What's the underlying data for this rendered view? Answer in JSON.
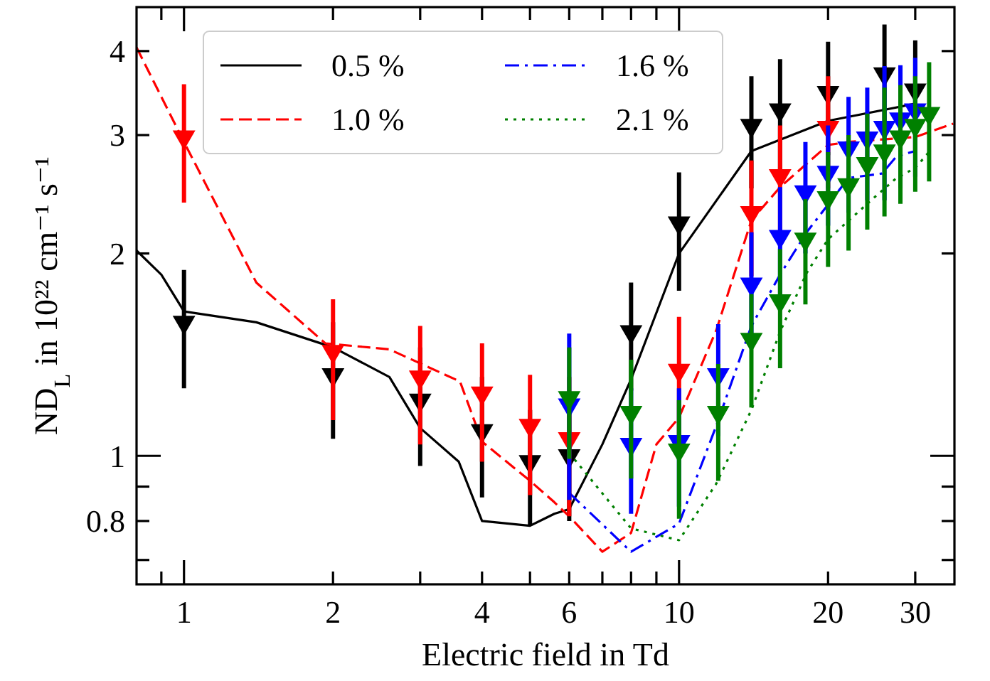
{
  "chart_data": {
    "type": "line",
    "xlabel": "Electric field in Td",
    "ylabel": "ND$_{L}$ in 10²² cm⁻¹ s⁻¹",
    "log": "xy",
    "grid": false,
    "legend": "top",
    "xlim": [
      0.802,
      36
    ],
    "ylim": [
      0.644,
      4.65
    ],
    "xticks": [
      {
        "value": 0.9,
        "label": null
      },
      1,
      2,
      {
        "value": 3,
        "label": null
      },
      4,
      {
        "value": 5,
        "label": null
      },
      6,
      {
        "value": 7,
        "label": null
      },
      {
        "value": 8,
        "label": null
      },
      {
        "value": 9,
        "label": null
      },
      10,
      20,
      30
    ],
    "yticks": [
      {
        "value": 0.7,
        "label": null
      },
      0.8,
      {
        "value": 0.9,
        "label": null
      },
      1,
      2,
      3,
      4
    ],
    "series": [
      {
        "name": "0.5 %",
        "color": "#000000",
        "line_style": "solid",
        "x": [
          0.802,
          0.9,
          1,
          1.4,
          2,
          2.6,
          3,
          3.59,
          4,
          5,
          5.6,
          6,
          7,
          8,
          10,
          14,
          20,
          30
        ],
        "values": [
          2.02,
          1.86,
          1.64,
          1.58,
          1.45,
          1.31,
          1.1,
          0.98,
          0.8,
          0.787,
          0.82,
          0.833,
          1.04,
          1.3,
          2.0,
          2.84,
          3.15,
          3.34
        ]
      },
      {
        "name": "1.0 %",
        "color": "#ff0000",
        "line_style": "dashed",
        "x": [
          0.802,
          1,
          1.4,
          1.93,
          2.6,
          3.61,
          4,
          5,
          5.6,
          6,
          7,
          8,
          9,
          10,
          11.9,
          14,
          16,
          20,
          22,
          30,
          35.8
        ],
        "values": [
          4.05,
          2.93,
          1.81,
          1.47,
          1.44,
          1.29,
          1.05,
          0.918,
          0.853,
          0.813,
          0.72,
          0.768,
          1.04,
          1.14,
          1.54,
          2.24,
          2.51,
          2.9,
          2.93,
          2.98,
          3.12
        ]
      },
      {
        "name": "1.6 %",
        "color": "#0000ff",
        "line_style": "dashdot",
        "x": [
          6,
          8,
          10,
          11.9,
          14,
          16,
          18.1,
          22,
          25.7,
          27.5,
          30
        ],
        "values": [
          0.881,
          0.72,
          0.793,
          1.11,
          1.56,
          1.86,
          2.15,
          2.59,
          2.63,
          2.79,
          2.84
        ]
      },
      {
        "name": "2.1 %",
        "color": "#008000",
        "line_style": "dotted",
        "x": [
          6,
          8,
          10,
          11.9,
          14,
          16,
          18.1,
          20,
          24.6,
          27.5,
          30,
          32.1
        ],
        "values": [
          1.01,
          0.78,
          0.749,
          0.91,
          1.17,
          1.53,
          1.87,
          2.1,
          2.41,
          2.59,
          2.68,
          2.84
        ]
      },
      {
        "type": "scatter",
        "color": "#000000",
        "marker": "triangle",
        "x": [
          1,
          2,
          3,
          4,
          5,
          6,
          8,
          10,
          14,
          16,
          20,
          26,
          30
        ],
        "values": [
          1.58,
          1.32,
          1.21,
          1.09,
          0.98,
          1.0,
          1.53,
          2.22,
          3.1,
          3.27,
          3.47,
          3.7,
          3.5
        ],
        "errors": [
          [
            1.26,
            1.89
          ],
          [
            1.06,
            1.58
          ],
          [
            0.966,
            1.45
          ],
          [
            0.867,
            1.31
          ],
          [
            0.787,
            1.17
          ],
          [
            0.8,
            1.2
          ],
          [
            1.25,
            1.81
          ],
          [
            1.76,
            2.64
          ],
          [
            2.5,
            3.67
          ],
          [
            2.65,
            3.89
          ],
          [
            2.8,
            4.13
          ],
          [
            3.0,
            4.38
          ],
          [
            2.85,
            4.15
          ]
        ]
      },
      {
        "type": "scatter",
        "color": "#ff0000",
        "marker": "triangle",
        "x": [
          1,
          2,
          3,
          4,
          5,
          6,
          10,
          14,
          16,
          20
        ],
        "values": [
          2.98,
          1.43,
          1.31,
          1.24,
          1.11,
          1.06,
          1.34,
          2.3,
          2.61,
          3.08
        ],
        "errors": [
          [
            2.38,
            3.57
          ],
          [
            1.13,
            1.71
          ],
          [
            1.04,
            1.56
          ],
          [
            0.98,
            1.47
          ],
          [
            0.874,
            1.32
          ],
          [
            0.813,
            1.31
          ],
          [
            1.07,
            1.61
          ],
          [
            1.85,
            2.75
          ],
          [
            2.1,
            3.1
          ],
          [
            2.5,
            3.67
          ]
        ]
      },
      {
        "type": "scatter",
        "color": "#0000ff",
        "marker": "triangle",
        "x": [
          6,
          8,
          10,
          12,
          14,
          16,
          18,
          20,
          22,
          24,
          26,
          28,
          30
        ],
        "values": [
          1.19,
          1.04,
          1.05,
          1.32,
          1.8,
          2.12,
          2.47,
          2.64,
          2.87,
          2.97,
          3.08,
          3.17,
          3.27
        ],
        "errors": [
          [
            0.86,
            1.52
          ],
          [
            0.82,
            1.26
          ],
          [
            0.84,
            1.26
          ],
          [
            1.07,
            1.57
          ],
          [
            1.45,
            2.15
          ],
          [
            1.73,
            2.51
          ],
          [
            2.0,
            2.93
          ],
          [
            2.2,
            3.1
          ],
          [
            2.3,
            3.42
          ],
          [
            2.4,
            3.53
          ],
          [
            2.4,
            3.8
          ],
          [
            2.5,
            3.81
          ],
          [
            2.6,
            3.91
          ]
        ]
      },
      {
        "type": "scatter",
        "color": "#008000",
        "marker": "triangle",
        "x": [
          6,
          8,
          10,
          12,
          14,
          16,
          18,
          20,
          22,
          24,
          26,
          28,
          30,
          32
        ],
        "values": [
          1.22,
          1.16,
          1.02,
          1.16,
          1.49,
          1.7,
          2.1,
          2.42,
          2.53,
          2.72,
          2.84,
          2.98,
          3.1,
          3.23
        ],
        "errors": [
          [
            0.99,
            1.45
          ],
          [
            0.925,
            1.39
          ],
          [
            0.806,
            1.21
          ],
          [
            0.918,
            1.37
          ],
          [
            1.18,
            1.74
          ],
          [
            1.35,
            2.03
          ],
          [
            1.68,
            2.41
          ],
          [
            1.91,
            2.83
          ],
          [
            2.02,
            3.0
          ],
          [
            2.17,
            3.23
          ],
          [
            2.27,
            3.53
          ],
          [
            2.37,
            3.56
          ],
          [
            2.47,
            3.67
          ],
          [
            2.56,
            3.85
          ]
        ]
      }
    ]
  }
}
